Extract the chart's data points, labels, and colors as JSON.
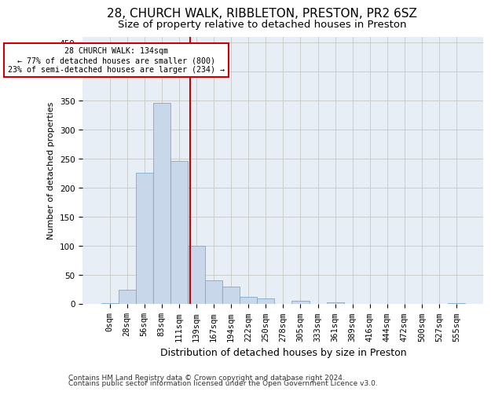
{
  "title1": "28, CHURCH WALK, RIBBLETON, PRESTON, PR2 6SZ",
  "title2": "Size of property relative to detached houses in Preston",
  "xlabel": "Distribution of detached houses by size in Preston",
  "ylabel": "Number of detached properties",
  "categories": [
    "0sqm",
    "28sqm",
    "56sqm",
    "83sqm",
    "111sqm",
    "139sqm",
    "167sqm",
    "194sqm",
    "222sqm",
    "250sqm",
    "278sqm",
    "305sqm",
    "333sqm",
    "361sqm",
    "389sqm",
    "416sqm",
    "444sqm",
    "472sqm",
    "500sqm",
    "527sqm",
    "555sqm"
  ],
  "values": [
    2,
    24,
    226,
    347,
    246,
    100,
    40,
    30,
    12,
    9,
    0,
    5,
    0,
    3,
    0,
    0,
    0,
    0,
    0,
    0,
    2
  ],
  "bar_color": "#c8d8ea",
  "bar_edge_color": "#7aaacc",
  "vline_x": 4.62,
  "vline_color": "#cc0000",
  "annotation_text": "28 CHURCH WALK: 134sqm\n← 77% of detached houses are smaller (800)\n23% of semi-detached houses are larger (234) →",
  "annotation_box_color": "#ffffff",
  "annotation_box_edge": "#cc0000",
  "ylim": [
    0,
    460
  ],
  "yticks": [
    0,
    50,
    100,
    150,
    200,
    250,
    300,
    350,
    400,
    450
  ],
  "grid_color": "#cccccc",
  "bg_color": "#e8eef5",
  "footer1": "Contains HM Land Registry data © Crown copyright and database right 2024.",
  "footer2": "Contains public sector information licensed under the Open Government Licence v3.0.",
  "title1_fontsize": 11,
  "title2_fontsize": 9.5,
  "xlabel_fontsize": 9,
  "ylabel_fontsize": 8,
  "tick_fontsize": 7.5,
  "footer_fontsize": 6.5
}
